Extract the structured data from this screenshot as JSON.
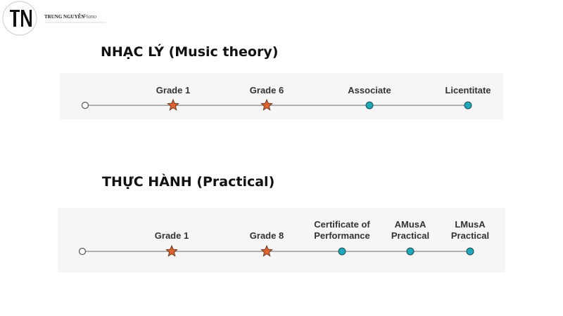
{
  "logo": {
    "brand": "TRUNG NGUYỄN",
    "script": "Piano"
  },
  "sections": [
    {
      "title": "NHẠC LÝ (Music theory)",
      "milestones": [
        [
          "Grade 1"
        ],
        [
          "Grade 6"
        ],
        [
          "Associate"
        ],
        [
          "Licentitate"
        ]
      ]
    },
    {
      "title": "THỰC HÀNH (Practical)",
      "milestones": [
        [
          "Grade 1"
        ],
        [
          "Grade 8"
        ],
        [
          "Certificate of",
          "Performance"
        ],
        [
          "AMusA",
          "Practical"
        ],
        [
          "LMusA",
          "Practical"
        ]
      ]
    }
  ]
}
